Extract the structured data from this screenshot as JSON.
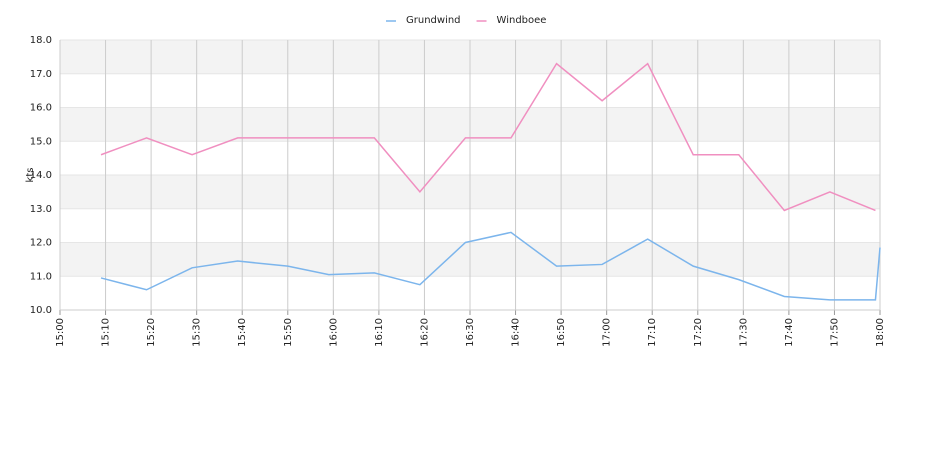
{
  "chart_data": {
    "type": "line",
    "y_label": "kts",
    "x": [
      "15:09",
      "15:19",
      "15:29",
      "15:39",
      "15:50",
      "15:59",
      "16:09",
      "16:19",
      "16:29",
      "16:39",
      "16:49",
      "16:59",
      "17:09",
      "17:19",
      "17:29",
      "17:39",
      "17:49",
      "17:59",
      "18:00"
    ],
    "series": [
      {
        "name": "Grundwind",
        "color": "#7cb5ec",
        "values": [
          10.95,
          10.6,
          11.25,
          11.45,
          11.3,
          11.05,
          11.1,
          10.75,
          12.0,
          12.3,
          11.3,
          11.35,
          12.1,
          11.3,
          10.9,
          10.4,
          10.3,
          10.3,
          11.85
        ]
      },
      {
        "name": "Windboee",
        "color": "#f08fc0",
        "values": [
          14.6,
          15.1,
          14.6,
          15.1,
          15.1,
          15.1,
          15.1,
          13.5,
          15.1,
          15.1,
          17.3,
          16.2,
          17.3,
          14.6,
          14.6,
          12.95,
          13.5,
          12.95,
          null
        ]
      }
    ],
    "xlim": [
      "15:00",
      "18:00"
    ],
    "xticks": [
      "15:00",
      "15:10",
      "15:20",
      "15:30",
      "15:40",
      "15:50",
      "16:00",
      "16:10",
      "16:20",
      "16:30",
      "16:40",
      "16:50",
      "17:00",
      "17:10",
      "17:20",
      "17:30",
      "17:40",
      "17:50",
      "18:00"
    ],
    "ylim": [
      10,
      18
    ],
    "yticks": [
      {
        "value": 10,
        "label": "10.0"
      },
      {
        "value": 11,
        "label": "11.0"
      },
      {
        "value": 12,
        "label": "12.0"
      },
      {
        "value": 13,
        "label": "13.0"
      },
      {
        "value": 14,
        "label": "14.0"
      },
      {
        "value": 15,
        "label": "15.0"
      },
      {
        "value": 16,
        "label": "16.0"
      },
      {
        "value": 17,
        "label": "17.0"
      },
      {
        "value": 18,
        "label": "18.0"
      }
    ],
    "grid": true,
    "legend": "top"
  }
}
